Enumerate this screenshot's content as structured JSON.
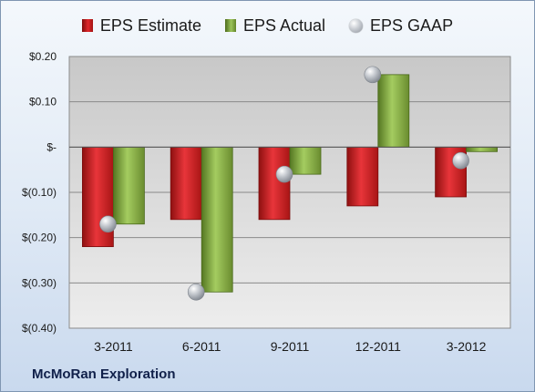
{
  "chart_data": {
    "type": "bar",
    "categories": [
      "3-2011",
      "6-2011",
      "9-2011",
      "12-2011",
      "3-2012"
    ],
    "series": [
      {
        "name": "EPS Estimate",
        "values": [
          -0.22,
          -0.16,
          -0.16,
          -0.13,
          -0.11
        ],
        "color": "#d42a2a"
      },
      {
        "name": "EPS Actual",
        "values": [
          -0.17,
          -0.32,
          -0.06,
          0.16,
          -0.01
        ],
        "color": "#86b04a"
      },
      {
        "name": "EPS GAAP",
        "values": [
          -0.17,
          -0.32,
          -0.06,
          0.16,
          -0.03
        ],
        "color": "#b9bdc4",
        "marker": "sphere"
      }
    ],
    "ylim": [
      -0.4,
      0.2
    ],
    "yticks": [
      0.2,
      0.1,
      0.0,
      -0.1,
      -0.2,
      -0.3,
      -0.4
    ],
    "ytick_labels": [
      "$0.20",
      "$0.10",
      "$-",
      "$(0.10)",
      "$(0.20)",
      "$(0.30)",
      "$(0.40)"
    ],
    "grid": true,
    "legend_position": "top"
  },
  "footer_label": "McMoRan Exploration"
}
